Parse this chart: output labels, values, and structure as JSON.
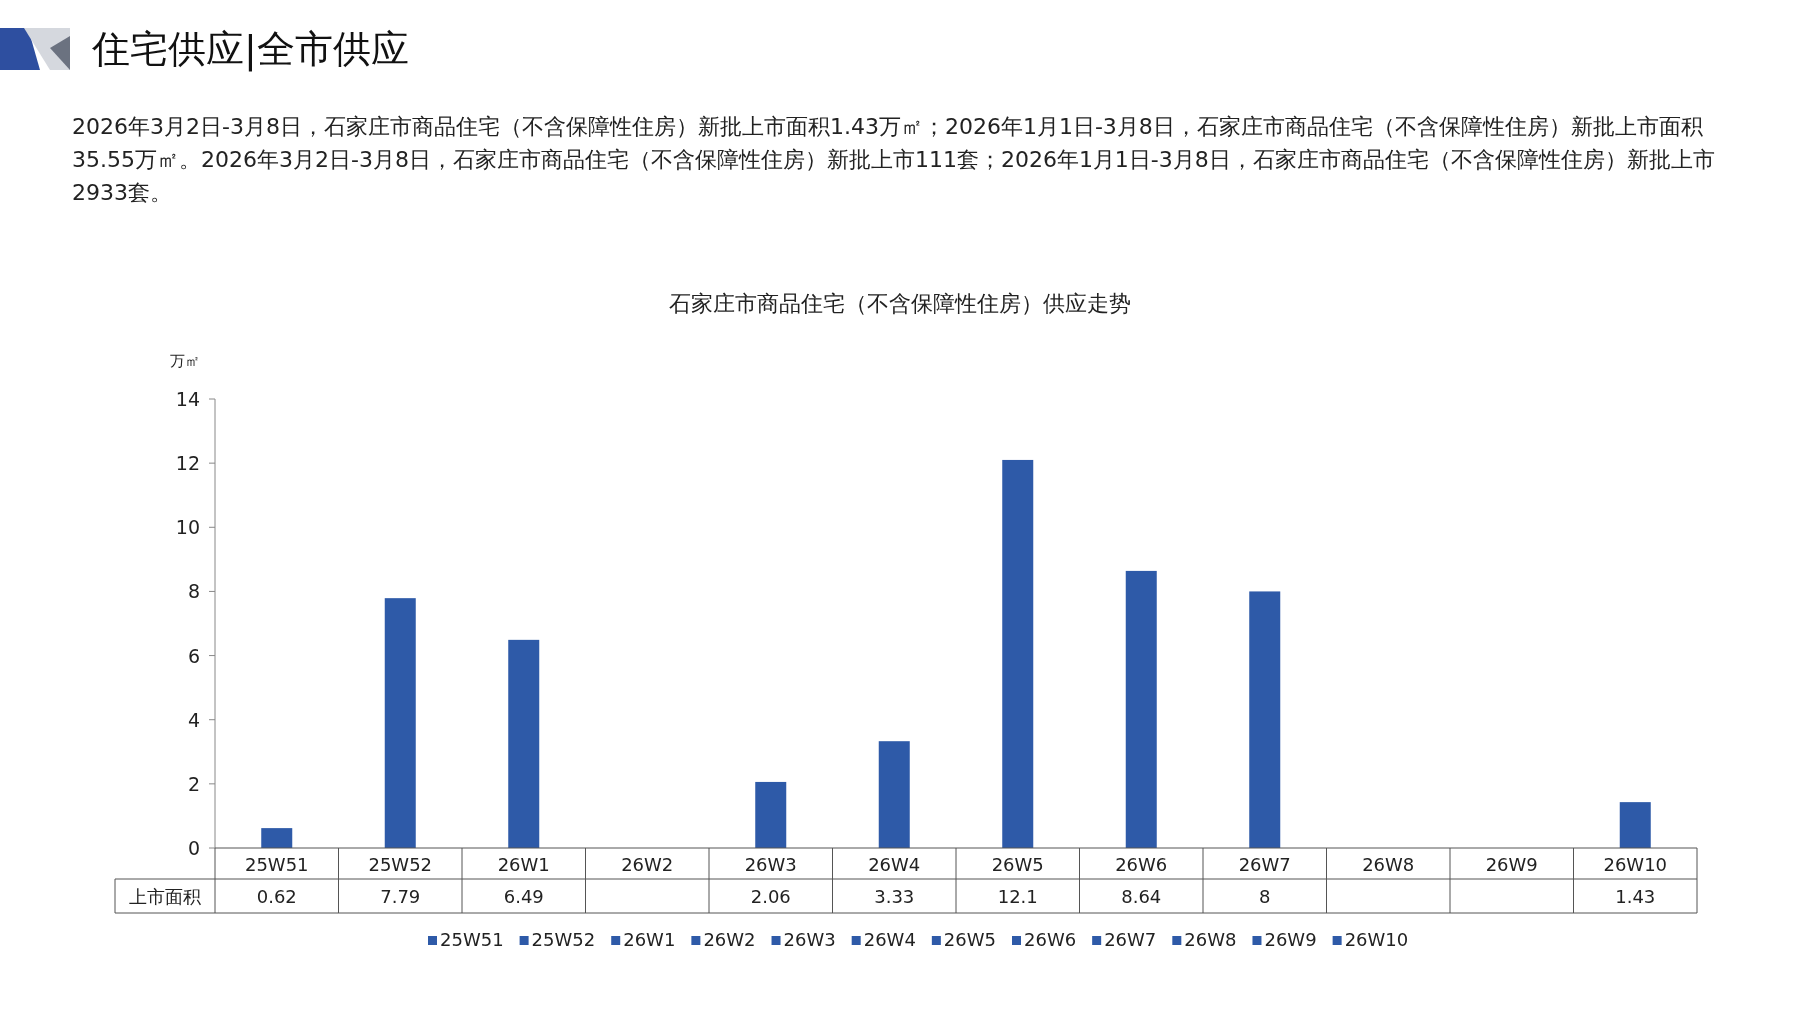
{
  "chart_data": {
    "type": "bar",
    "title": "石家庄市商品住宅（不含保障性住房）供应走势",
    "subtitle": "住宅供应|全市供应",
    "annotations": [
      "2026年3月2日-3月8日，石家庄市商品住宅（不含保障性住房）新批上市面积1.43万㎡；2026年1月1日-3月8日，石家庄市商品住宅（不含保障性住房）新批上市面积35.55万㎡。2026年3月2日-3月8日，石家庄市商品住宅（不含保障性住房）新批上市111套；2026年1月1日-3月8日，石家庄市商品住宅（不含保障性住房）新批上市2933套。"
    ],
    "ylabel": "万㎡",
    "categories": [
      "25W51",
      "25W52",
      "26W1",
      "26W2",
      "26W3",
      "26W4",
      "26W5",
      "26W6",
      "26W7",
      "26W8",
      "26W9",
      "26W10"
    ],
    "series": [
      {
        "name": "上市面积",
        "color": "#2e5aa8",
        "values": [
          0.62,
          7.79,
          6.49,
          null,
          2.06,
          3.33,
          12.1,
          8.64,
          8,
          null,
          null,
          1.43
        ]
      }
    ],
    "ylim": [
      0,
      14
    ],
    "yticks": [
      0,
      2,
      4,
      6,
      8,
      10,
      12,
      14
    ],
    "grid": false,
    "legend": "bottom",
    "data_labels": true
  }
}
